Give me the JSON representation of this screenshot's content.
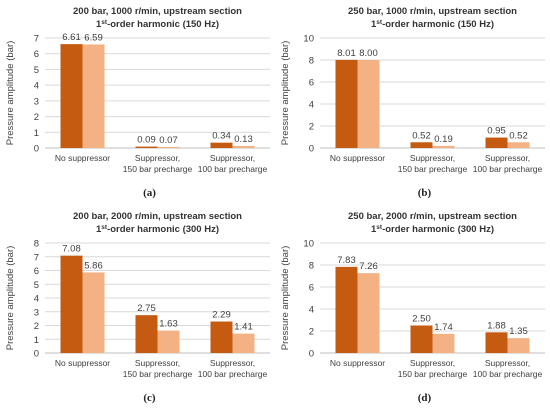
{
  "colors": {
    "dark": "#C55A11",
    "light": "#F4B183",
    "grid": "#D9D9D9",
    "axis": "#BFBFBF",
    "text": "#404040"
  },
  "chart_data": [
    {
      "type": "bar",
      "title_line1": "200 bar, 1000 r/min, upstream section",
      "title_line2_order": "1",
      "title_line2_sup": "st",
      "title_line2_rest": "-order harmonic (150 Hz)",
      "ylabel": "Pressure amplitude (bar)",
      "ylim": [
        0,
        7
      ],
      "yticks": [
        0,
        1,
        2,
        3,
        4,
        5,
        6,
        7
      ],
      "categories": [
        [
          "No suppressor"
        ],
        [
          "Suppressor,",
          "150 bar precharge"
        ],
        [
          "Suppressor,",
          "100 bar precharge"
        ]
      ],
      "series": [
        {
          "values": [
            6.61,
            0.09,
            0.34
          ]
        },
        {
          "values": [
            6.59,
            0.07,
            0.13
          ]
        }
      ],
      "value_labels": [
        [
          "6.61",
          "0.09",
          "0.34"
        ],
        [
          "6.59",
          "0.07",
          "0.13"
        ]
      ],
      "panel_label": "(a)"
    },
    {
      "type": "bar",
      "title_line1": "250 bar, 1000 r/min, upstream section",
      "title_line2_order": "1",
      "title_line2_sup": "st",
      "title_line2_rest": "-order harmonic (150 Hz)",
      "ylabel": "Pressure amplitude (bar)",
      "ylim": [
        0,
        10
      ],
      "yticks": [
        0,
        2,
        4,
        6,
        8,
        10
      ],
      "categories": [
        [
          "No suppressor"
        ],
        [
          "Suppressor,",
          "150 bar precharge"
        ],
        [
          "Suppressor,",
          "100 bar precharge"
        ]
      ],
      "series": [
        {
          "values": [
            8.01,
            0.52,
            0.95
          ]
        },
        {
          "values": [
            8.0,
            0.19,
            0.52
          ]
        }
      ],
      "value_labels": [
        [
          "8.01",
          "0.52",
          "0.95"
        ],
        [
          "8.00",
          "0.19",
          "0.52"
        ]
      ],
      "panel_label": "(b)"
    },
    {
      "type": "bar",
      "title_line1": "200 bar, 2000 r/min, upstream section",
      "title_line2_order": "1",
      "title_line2_sup": "st",
      "title_line2_rest": "-order harmonic (300 Hz)",
      "ylabel": "Pressure amplitude (bar)",
      "ylim": [
        0,
        8
      ],
      "yticks": [
        0,
        1,
        2,
        3,
        4,
        5,
        6,
        7,
        8
      ],
      "categories": [
        [
          "No suppressor"
        ],
        [
          "Suppressor,",
          "150 bar precharge"
        ],
        [
          "Suppressor,",
          "100 bar precharge"
        ]
      ],
      "series": [
        {
          "values": [
            7.08,
            2.75,
            2.29
          ]
        },
        {
          "values": [
            5.86,
            1.63,
            1.41
          ]
        }
      ],
      "value_labels": [
        [
          "7.08",
          "2.75",
          "2.29"
        ],
        [
          "5.86",
          "1.63",
          "1.41"
        ]
      ],
      "panel_label": "(c)"
    },
    {
      "type": "bar",
      "title_line1": "250 bar, 2000 r/min, upstream section",
      "title_line2_order": "1",
      "title_line2_sup": "st",
      "title_line2_rest": "-order harmonic (300 Hz)",
      "ylabel": "Pressure amplitude (bar)",
      "ylim": [
        0,
        10
      ],
      "yticks": [
        0,
        2,
        4,
        6,
        8,
        10
      ],
      "categories": [
        [
          "No suppressor"
        ],
        [
          "Suppressor,",
          "150 bar precharge"
        ],
        [
          "Suppressor,",
          "100 bar precharge"
        ]
      ],
      "series": [
        {
          "values": [
            7.83,
            2.5,
            1.88
          ]
        },
        {
          "values": [
            7.26,
            1.74,
            1.35
          ]
        }
      ],
      "value_labels": [
        [
          "7.83",
          "2.50",
          "1.88"
        ],
        [
          "7.26",
          "1.74",
          "1.35"
        ]
      ],
      "panel_label": "(d)"
    }
  ]
}
